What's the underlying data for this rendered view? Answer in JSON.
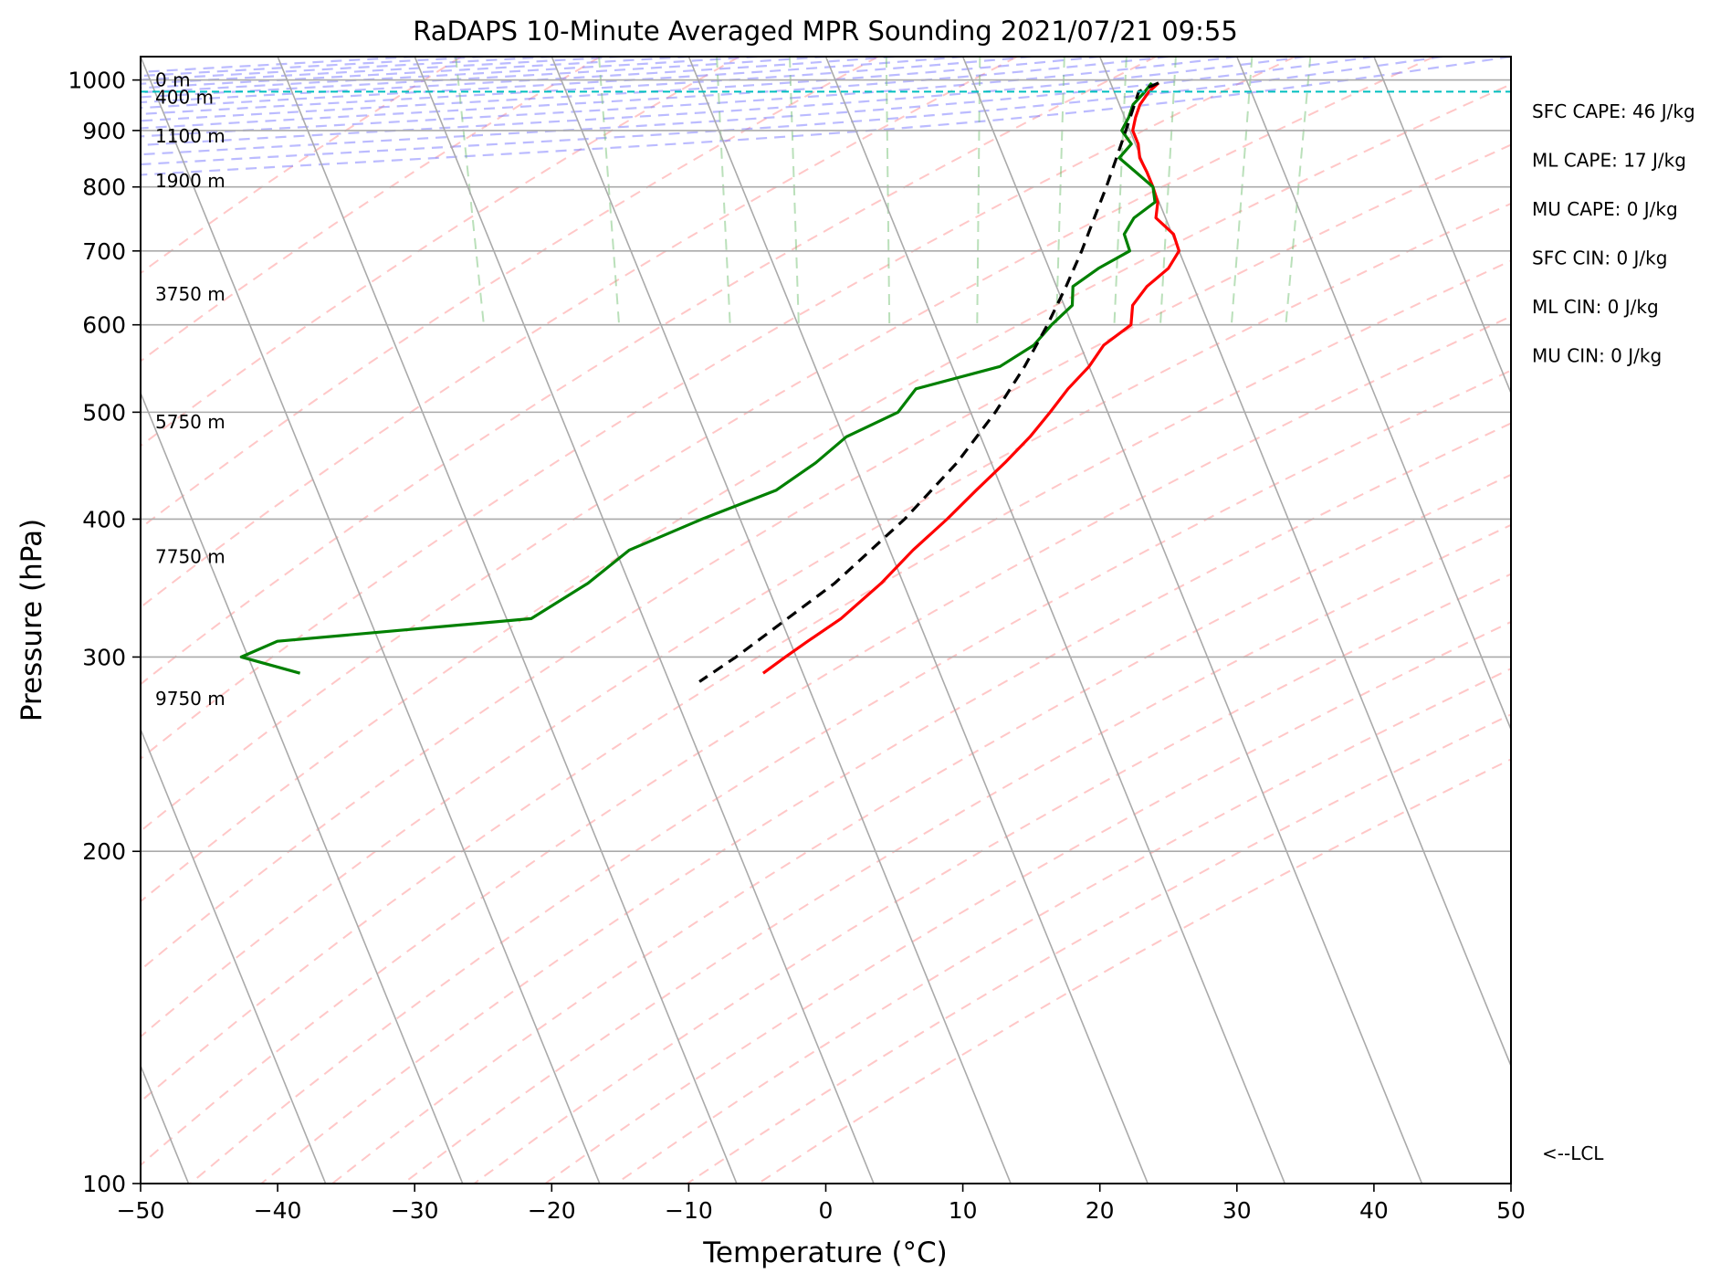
{
  "chart_data": {
    "type": "line",
    "title": "RaDAPS 10-Minute Averaged MPR Sounding 2021/07/21 09:55",
    "xlabel": "Temperature (°C)",
    "ylabel": "Pressure (hPa)",
    "xlim": [
      -50,
      50
    ],
    "ylim": [
      1050,
      100
    ],
    "y_scale": "log",
    "skew_t": true,
    "x_ticks": [
      "−50",
      "−40",
      "−30",
      "−20",
      "−10",
      "0",
      "10",
      "20",
      "30",
      "40",
      "50"
    ],
    "y_ticks": [
      "100",
      "200",
      "300",
      "400",
      "500",
      "600",
      "700",
      "800",
      "900",
      "1000"
    ],
    "height_labels": [
      {
        "p": 1000,
        "label": "0 m"
      },
      {
        "p": 965,
        "label": "400 m"
      },
      {
        "p": 890,
        "label": "1100 m"
      },
      {
        "p": 810,
        "label": "1900 m"
      },
      {
        "p": 640,
        "label": "3750 m"
      },
      {
        "p": 490,
        "label": "5750 m"
      },
      {
        "p": 370,
        "label": "7750 m"
      },
      {
        "p": 275,
        "label": "9750 m"
      }
    ],
    "indices": [
      "SFC CAPE: 46 J/kg",
      "ML CAPE: 17 J/kg",
      "MU CAPE: 0 J/kg",
      "SFC CIN: 0 J/kg",
      "ML CIN: 0 J/kg",
      "MU CIN: 0 J/kg"
    ],
    "lcl_label": "<--LCL",
    "lcl_pressure": 976,
    "series": [
      {
        "color": "#ff0000",
        "style": "solid",
        "p": [
          994,
          975,
          950,
          925,
          900,
          875,
          850,
          825,
          800,
          775,
          750,
          725,
          700,
          675,
          650,
          625,
          600,
          575,
          550,
          525,
          500,
          475,
          450,
          425,
          400,
          375,
          350,
          325,
          310,
          300,
          290
        ],
        "t": [
          23.5,
          22.5,
          21.5,
          20.8,
          20.2,
          20.2,
          19.9,
          20.0,
          20.0,
          19.9,
          19.3,
          20.1,
          20.0,
          18.7,
          16.6,
          15.0,
          14.3,
          11.7,
          10.0,
          7.8,
          5.8,
          3.6,
          1.0,
          -1.9,
          -4.9,
          -8.3,
          -11.6,
          -15.6,
          -18.7,
          -20.8,
          -22.9
        ]
      },
      {
        "color": "#008000",
        "style": "solid",
        "p": [
          994,
          975,
          950,
          925,
          900,
          875,
          850,
          825,
          800,
          775,
          750,
          725,
          700,
          675,
          650,
          625,
          600,
          575,
          550,
          525,
          500,
          475,
          450,
          425,
          400,
          375,
          350,
          325,
          310,
          300,
          290
        ],
        "t": [
          23.0,
          22.2,
          21.0,
          20.3,
          19.4,
          19.7,
          18.4,
          19.2,
          20.0,
          19.7,
          17.7,
          16.5,
          16.4,
          13.6,
          11.2,
          10.6,
          8.5,
          6.6,
          3.5,
          -3.3,
          -5.3,
          -9.8,
          -12.8,
          -16.5,
          -22.8,
          -29.0,
          -33.0,
          -38.2,
          -57.4,
          -60.5,
          -56.7
        ]
      },
      {
        "color": "#000000",
        "style": "dashed",
        "p": [
          994,
          976,
          950,
          900,
          850,
          800,
          750,
          700,
          650,
          600,
          550,
          500,
          450,
          400,
          350,
          300,
          285
        ],
        "t": [
          23.5,
          21.8,
          21.1,
          19.7,
          18.2,
          16.6,
          14.8,
          12.9,
          10.7,
          8.2,
          5.3,
          1.8,
          -2.5,
          -8.0,
          -15.0,
          -24.4,
          -27.8
        ]
      }
    ]
  }
}
